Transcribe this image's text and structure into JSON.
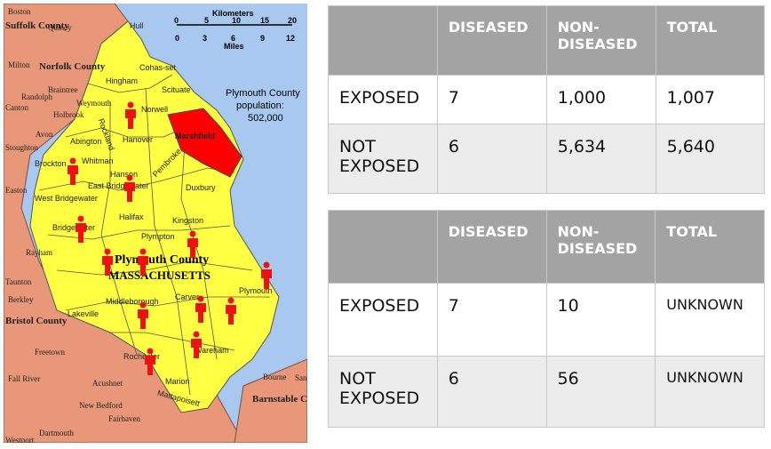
{
  "map": {
    "scale_title": "Kilometers",
    "km_ticks": [
      "0",
      "5",
      "10",
      "15",
      "20"
    ],
    "mi_ticks": [
      "0",
      "3",
      "6",
      "9",
      "12"
    ],
    "scale_unit": "Miles",
    "population_label": [
      "Plymouth County",
      "population:",
      "502,000"
    ],
    "county_title": [
      "Plymouth County",
      "MASSACHUSETTS"
    ],
    "highlighted_town": "Marshfield",
    "towns": [
      "Hull",
      "Hingham",
      "Cohas-set",
      "Scituate",
      "Norwell",
      "Marshfield",
      "Hanover",
      "Rockland",
      "Abington",
      "Whitman",
      "Brockton",
      "East Bridgewater",
      "West Bridgewater",
      "Hanson",
      "Pembroke",
      "Duxbury",
      "Halifax",
      "Kingston",
      "Bridgewater",
      "Plympton",
      "Plymouth",
      "Middleborough",
      "Carver",
      "Lakeville",
      "Rochester",
      "Wareham",
      "Marion",
      "Mattapoisett"
    ],
    "neighbors": [
      "Boston",
      "Suffolk County",
      "Quincy",
      "Norfolk County",
      "Braintree",
      "Weymouth",
      "Holbrook",
      "Milton",
      "Randolph",
      "Canton",
      "Avon",
      "Stoughton",
      "Easton",
      "Rayham",
      "Taunton",
      "Berkley",
      "Bristol County",
      "Freetown",
      "Fall River",
      "Acushnet",
      "New Bedford",
      "Fairhaven",
      "Dartmouth",
      "Westport",
      "Bourne",
      "Barnstable County",
      "Sand"
    ],
    "colors": {
      "county": "#ffff44",
      "marshfield": "#ff0000",
      "ocean": "#a8c8f0",
      "neighbors": "#e89878",
      "figure": "#ee1111"
    }
  },
  "table1": {
    "headers": [
      "",
      "DISEASED",
      "NON-\nDISEASED",
      "TOTAL"
    ],
    "rows": [
      [
        "EXPOSED",
        "7",
        "1,000",
        "1,007"
      ],
      [
        "NOT\nEXPOSED",
        "6",
        "5,634",
        "5,640"
      ]
    ]
  },
  "table2": {
    "headers": [
      "",
      "DISEASED",
      "NON-\nDISEASED",
      "TOTAL"
    ],
    "rows": [
      [
        "EXPOSED",
        "7",
        "10",
        "UNKNOWN"
      ],
      [
        "NOT\nEXPOSED",
        "6",
        "56",
        "UNKNOWN"
      ]
    ]
  }
}
